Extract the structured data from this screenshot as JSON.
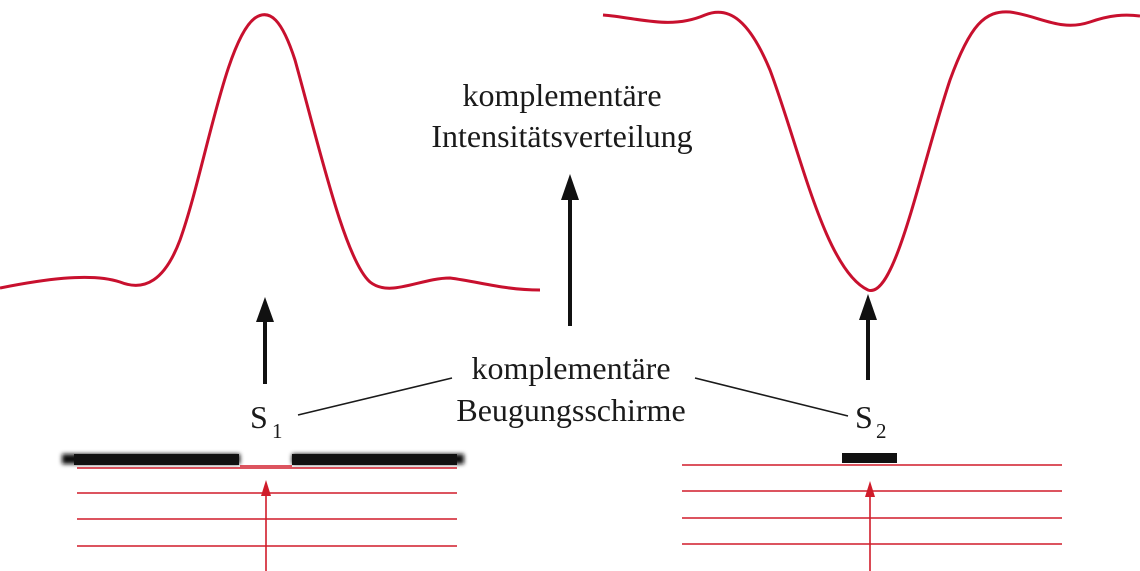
{
  "labels": {
    "top_line1": "komplementäre",
    "top_line2": "Intensitätsverteilung",
    "mid_line1": "komplementäre",
    "mid_line2": "Beugungsschirme",
    "s1_letter": "S",
    "s1_sub": "1",
    "s2_letter": "S",
    "s2_sub": "2"
  },
  "colors": {
    "curve": "#c8102e",
    "wave_lines": "#d01c2a",
    "screen": "#111111",
    "arrow": "#111111",
    "connector": "#1a1a1a",
    "text": "#1a1a1a"
  }
}
